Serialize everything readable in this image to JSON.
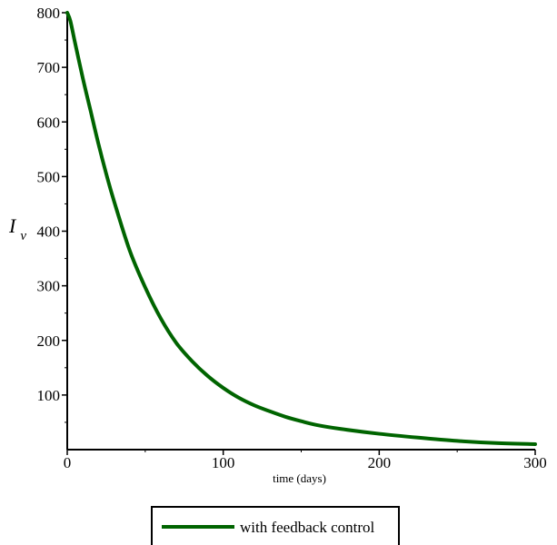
{
  "chart_data": {
    "type": "line",
    "title": "",
    "xlabel": "time (days)",
    "ylabel": {
      "main": "I",
      "sub": "v"
    },
    "xlim": [
      0,
      300
    ],
    "ylim": [
      0,
      800
    ],
    "x_ticks": [
      0,
      100,
      200,
      300
    ],
    "y_ticks": [
      100,
      200,
      300,
      400,
      500,
      600,
      700,
      800
    ],
    "grid": false,
    "legend_position": "bottom-center",
    "series": [
      {
        "name": "with feedback control",
        "color": "#006400",
        "x": [
          0,
          2,
          5,
          10,
          15,
          20,
          25,
          30,
          40,
          50,
          60,
          70,
          80,
          90,
          100,
          110,
          120,
          130,
          140,
          150,
          160,
          175,
          200,
          225,
          250,
          275,
          300
        ],
        "y": [
          800,
          785,
          745,
          680,
          620,
          560,
          505,
          455,
          365,
          297,
          240,
          195,
          162,
          135,
          113,
          95,
          81,
          70,
          60,
          52,
          45,
          38,
          29,
          22,
          16,
          12,
          10
        ]
      }
    ]
  }
}
